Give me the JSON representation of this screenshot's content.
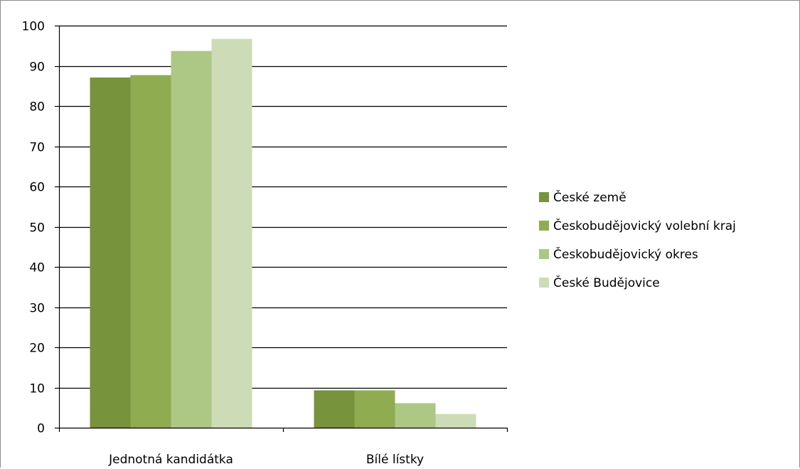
{
  "chart_data": {
    "type": "bar",
    "title": "",
    "xlabel": "",
    "ylabel": "",
    "ylim": [
      0,
      100
    ],
    "yticks": [
      0,
      10,
      20,
      30,
      40,
      50,
      60,
      70,
      80,
      90,
      100
    ],
    "categories": [
      "Jednotná kandidátka",
      "Bílé lístky"
    ],
    "series": [
      {
        "name": "České země",
        "color": "#77933c",
        "values": [
          87.1,
          9.3
        ]
      },
      {
        "name": "Českobudějovický volební kraj",
        "color": "#8fad50",
        "values": [
          87.7,
          9.3
        ]
      },
      {
        "name": "Českobudějovický okres",
        "color": "#adc785",
        "values": [
          93.7,
          6.1
        ]
      },
      {
        "name": "České Budějovice",
        "color": "#cddcb6",
        "values": [
          96.7,
          3.4
        ]
      }
    ],
    "grid": true,
    "legend": "right"
  }
}
